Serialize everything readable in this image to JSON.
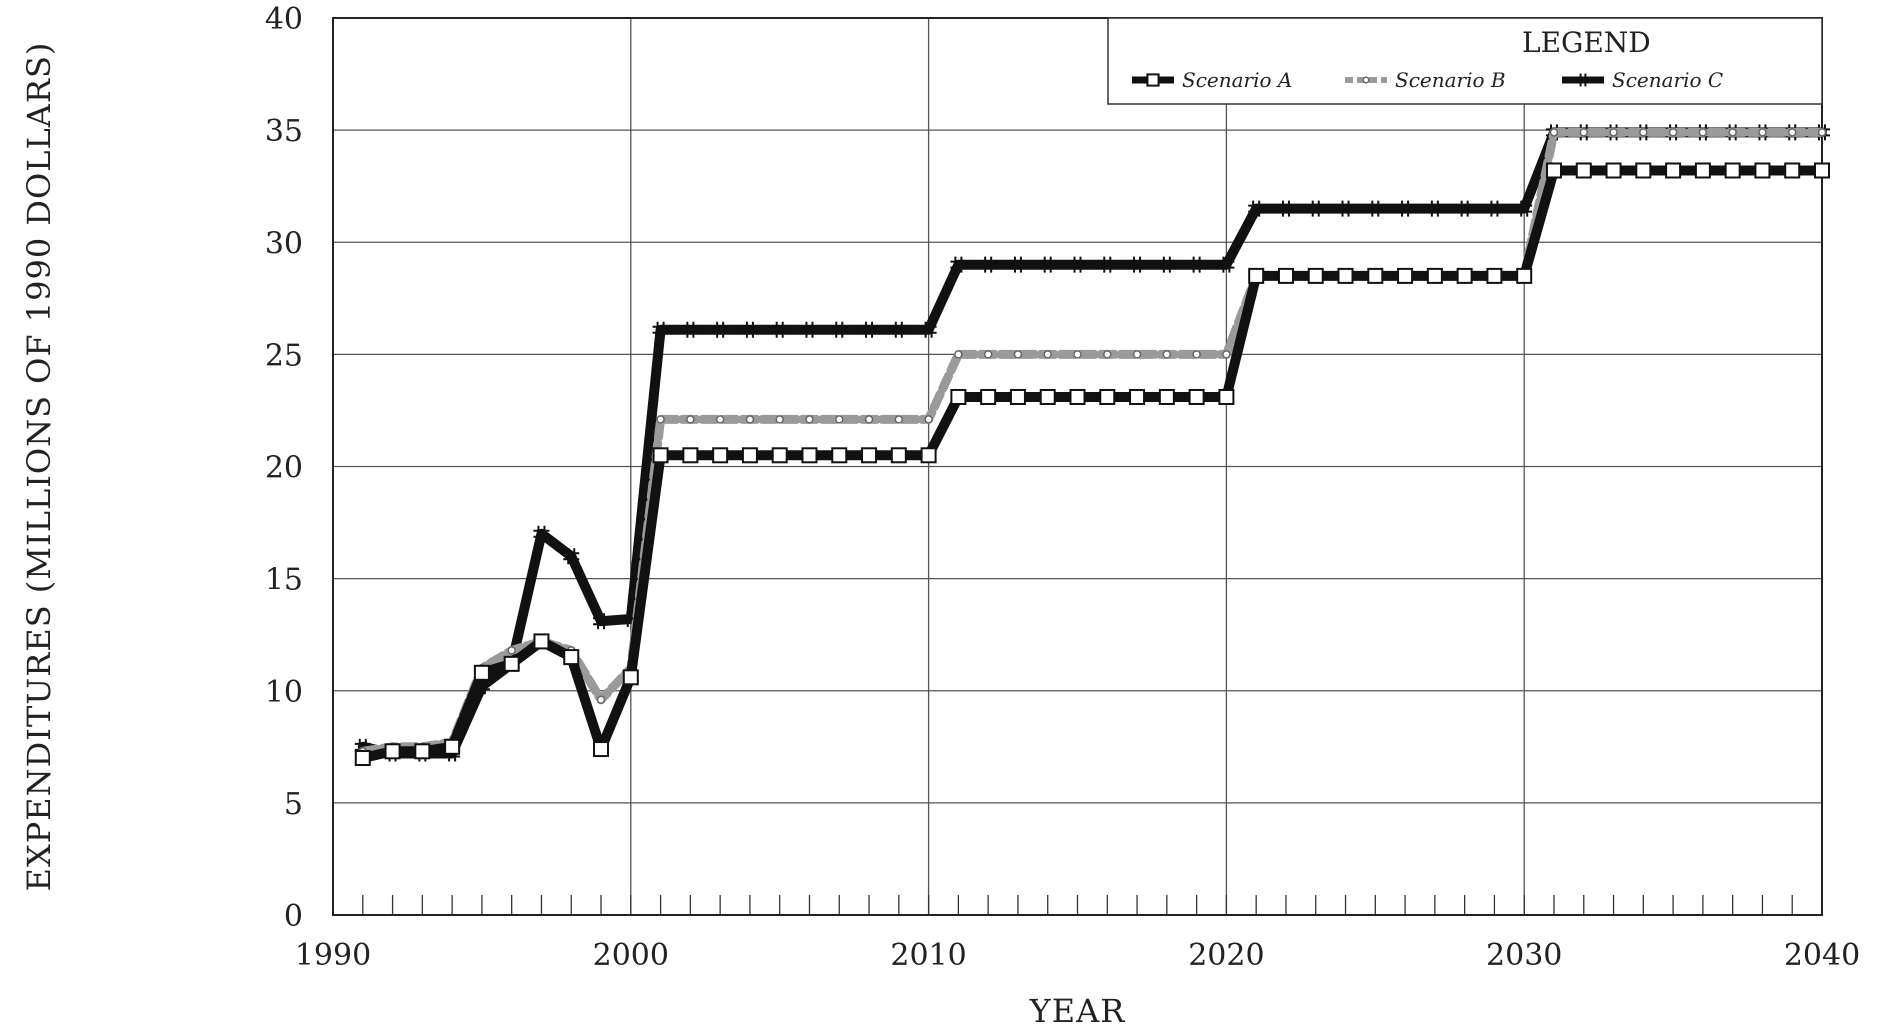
{
  "chart_data": {
    "type": "line",
    "title": "",
    "xlabel": "YEAR",
    "ylabel": "EXPENDITURES (MILLIONS OF 1990 DOLLARS)",
    "xlim": [
      1990,
      2040
    ],
    "ylim": [
      0,
      40
    ],
    "x_ticks": [
      1990,
      2000,
      2010,
      2020,
      2030,
      2040
    ],
    "y_ticks": [
      0,
      5,
      10,
      15,
      20,
      25,
      30,
      35,
      40
    ],
    "grid": true,
    "legend": {
      "title": "LEGEND",
      "position": "top-right"
    },
    "x": [
      1991,
      1992,
      1993,
      1994,
      1995,
      1996,
      1997,
      1998,
      1999,
      2000,
      2001,
      2002,
      2003,
      2004,
      2005,
      2006,
      2007,
      2008,
      2009,
      2010,
      2011,
      2012,
      2013,
      2014,
      2015,
      2016,
      2017,
      2018,
      2019,
      2020,
      2021,
      2022,
      2023,
      2024,
      2025,
      2026,
      2027,
      2028,
      2029,
      2030,
      2031,
      2032,
      2033,
      2034,
      2035,
      2036,
      2037,
      2038,
      2039,
      2040
    ],
    "series": [
      {
        "name": "Scenario A",
        "color": "#111111",
        "marker": "open-square",
        "values": [
          7.0,
          7.3,
          7.3,
          7.5,
          10.8,
          11.2,
          12.2,
          11.5,
          7.4,
          10.6,
          20.5,
          20.5,
          20.5,
          20.5,
          20.5,
          20.5,
          20.5,
          20.5,
          20.5,
          20.5,
          23.1,
          23.1,
          23.1,
          23.1,
          23.1,
          23.1,
          23.1,
          23.1,
          23.1,
          23.1,
          28.5,
          28.5,
          28.5,
          28.5,
          28.5,
          28.5,
          28.5,
          28.5,
          28.5,
          28.5,
          33.2,
          33.2,
          33.2,
          33.2,
          33.2,
          33.2,
          33.2,
          33.2,
          33.2,
          33.2
        ]
      },
      {
        "name": "Scenario B",
        "color": "#9a9a9a",
        "marker": "dot",
        "values": [
          7.3,
          7.5,
          7.5,
          7.7,
          11.0,
          11.8,
          12.2,
          11.8,
          9.6,
          11.0,
          22.1,
          22.1,
          22.1,
          22.1,
          22.1,
          22.1,
          22.1,
          22.1,
          22.1,
          22.1,
          25.0,
          25.0,
          25.0,
          25.0,
          25.0,
          25.0,
          25.0,
          25.0,
          25.0,
          25.0,
          28.5,
          28.5,
          28.5,
          28.5,
          28.5,
          28.5,
          28.5,
          28.5,
          28.5,
          28.5,
          34.9,
          34.9,
          34.9,
          34.9,
          34.9,
          34.9,
          34.9,
          34.9,
          34.9,
          34.9
        ]
      },
      {
        "name": "Scenario C",
        "color": "#111111",
        "marker": "hash",
        "values": [
          7.5,
          7.2,
          7.2,
          7.2,
          10.2,
          11.2,
          17.0,
          16.0,
          13.1,
          13.2,
          26.1,
          26.1,
          26.1,
          26.1,
          26.1,
          26.1,
          26.1,
          26.1,
          26.1,
          26.1,
          29.0,
          29.0,
          29.0,
          29.0,
          29.0,
          29.0,
          29.0,
          29.0,
          29.0,
          29.0,
          31.5,
          31.5,
          31.5,
          31.5,
          31.5,
          31.5,
          31.5,
          31.5,
          31.5,
          31.5,
          34.9,
          34.9,
          34.9,
          34.9,
          34.9,
          34.9,
          34.9,
          34.9,
          34.9,
          34.9
        ]
      }
    ]
  }
}
